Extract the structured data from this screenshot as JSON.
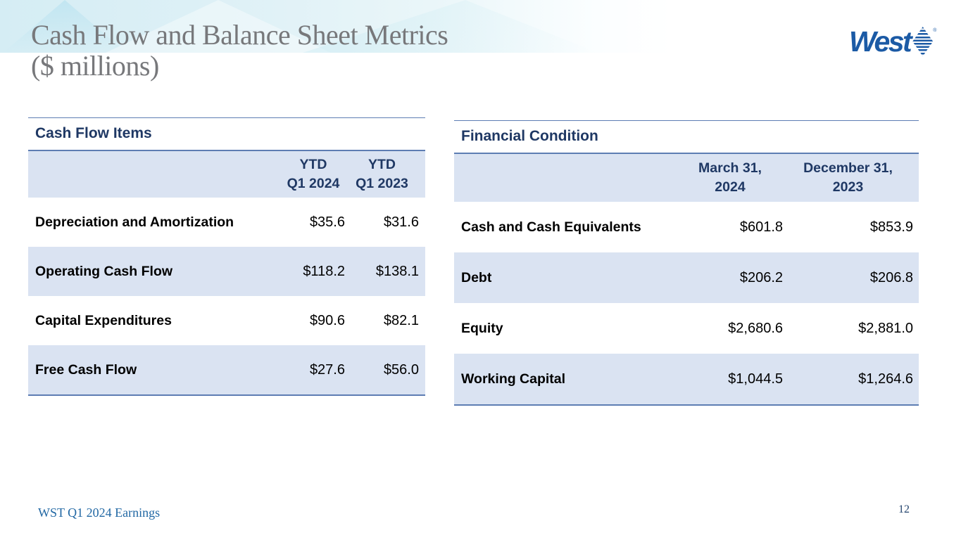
{
  "slide": {
    "title_line1": "Cash Flow and Balance Sheet Metrics",
    "title_line2": "($ millions)",
    "logo_text": "West",
    "logo_registered": "®",
    "footer": "WST Q1 2024 Earnings",
    "page_number": "12"
  },
  "colors": {
    "heading_navy": "#1f3864",
    "row_highlight_blue": "#dae3f2",
    "rule_line_blue": "#5d7db3",
    "logo_blue": "#1b5aa5",
    "title_gray": "#77787b",
    "footer_blue": "#2268a4",
    "band_cyan": "#d5edf4"
  },
  "tables": {
    "cash_flow": {
      "heading": "Cash Flow Items",
      "columns": [
        {
          "line1": "YTD",
          "line2": "Q1 2024"
        },
        {
          "line1": "YTD",
          "line2": "Q1 2023"
        }
      ],
      "rows": [
        {
          "label": "Depreciation and Amortization",
          "v1": "$35.6",
          "v2": "$31.6"
        },
        {
          "label": "Operating Cash Flow",
          "v1": "$118.2",
          "v2": "$138.1"
        },
        {
          "label": "Capital Expenditures",
          "v1": "$90.6",
          "v2": "$82.1"
        },
        {
          "label": "Free Cash Flow",
          "v1": "$27.6",
          "v2": "$56.0"
        }
      ]
    },
    "financial_condition": {
      "heading": "Financial Condition",
      "columns": [
        {
          "line1": "March 31,",
          "line2": "2024"
        },
        {
          "line1": "December 31,",
          "line2": "2023"
        }
      ],
      "rows": [
        {
          "label": "Cash and Cash Equivalents",
          "v1": "$601.8",
          "v2": "$853.9"
        },
        {
          "label": "Debt",
          "v1": "$206.2",
          "v2": "$206.8"
        },
        {
          "label": "Equity",
          "v1": "$2,680.6",
          "v2": "$2,881.0"
        },
        {
          "label": "Working Capital",
          "v1": "$1,044.5",
          "v2": "$1,264.6"
        }
      ]
    }
  }
}
